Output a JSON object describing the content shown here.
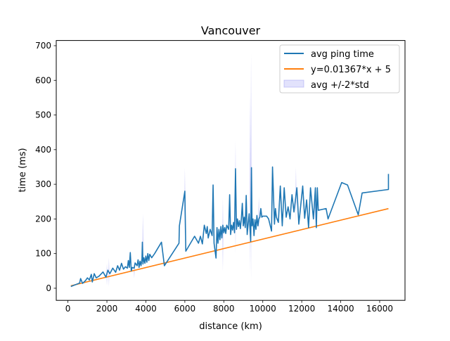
{
  "chart_data": {
    "type": "line",
    "title": "Vancouver",
    "xlabel": "distance (km)",
    "ylabel": "time (ms)",
    "xlim": [
      -600,
      17300
    ],
    "ylim": [
      -35,
      715
    ],
    "xticks": [
      0,
      2000,
      4000,
      6000,
      8000,
      10000,
      12000,
      14000,
      16000
    ],
    "yticks": [
      0,
      100,
      200,
      300,
      400,
      500,
      600,
      700
    ],
    "grid": false,
    "legend_position": "top-right",
    "series": [
      {
        "name": "avg ping time",
        "color": "#1f77b4",
        "points": [
          [
            150,
            5
          ],
          [
            600,
            15
          ],
          [
            650,
            28
          ],
          [
            750,
            14
          ],
          [
            900,
            22
          ],
          [
            1000,
            30
          ],
          [
            1100,
            24
          ],
          [
            1200,
            40
          ],
          [
            1250,
            18
          ],
          [
            1350,
            42
          ],
          [
            1450,
            30
          ],
          [
            1600,
            35
          ],
          [
            1800,
            47
          ],
          [
            1950,
            32
          ],
          [
            2050,
            52
          ],
          [
            2150,
            42
          ],
          [
            2300,
            58
          ],
          [
            2450,
            46
          ],
          [
            2550,
            65
          ],
          [
            2650,
            52
          ],
          [
            2750,
            72
          ],
          [
            2850,
            55
          ],
          [
            2950,
            62
          ],
          [
            3050,
            58
          ],
          [
            3100,
            80
          ],
          [
            3150,
            60
          ],
          [
            3200,
            103
          ],
          [
            3250,
            50
          ],
          [
            3300,
            60
          ],
          [
            3400,
            58
          ],
          [
            3450,
            73
          ],
          [
            3550,
            65
          ],
          [
            3600,
            82
          ],
          [
            3650,
            60
          ],
          [
            3700,
            78
          ],
          [
            3750,
            65
          ],
          [
            3800,
            85
          ],
          [
            3820,
            133
          ],
          [
            3850,
            70
          ],
          [
            3900,
            88
          ],
          [
            3950,
            72
          ],
          [
            4000,
            93
          ],
          [
            4050,
            75
          ],
          [
            4100,
            100
          ],
          [
            4150,
            80
          ],
          [
            4200,
            98
          ],
          [
            4300,
            88
          ],
          [
            4450,
            100
          ],
          [
            4800,
            133
          ],
          [
            4950,
            65
          ],
          [
            5700,
            130
          ],
          [
            5720,
            180
          ],
          [
            6000,
            280
          ],
          [
            6050,
            107
          ],
          [
            6500,
            150
          ],
          [
            6700,
            130
          ],
          [
            6800,
            150
          ],
          [
            6900,
            128
          ],
          [
            7000,
            182
          ],
          [
            7100,
            158
          ],
          [
            7150,
            178
          ],
          [
            7200,
            145
          ],
          [
            7300,
            170
          ],
          [
            7400,
            152
          ],
          [
            7450,
            298
          ],
          [
            7500,
            130
          ],
          [
            7600,
            87
          ],
          [
            7650,
            175
          ],
          [
            7700,
            130
          ],
          [
            7750,
            170
          ],
          [
            7800,
            140
          ],
          [
            7850,
            178
          ],
          [
            7900,
            145
          ],
          [
            7950,
            182
          ],
          [
            8000,
            160
          ],
          [
            8050,
            175
          ],
          [
            8100,
            158
          ],
          [
            8150,
            182
          ],
          [
            8250,
            170
          ],
          [
            8300,
            270
          ],
          [
            8350,
            155
          ],
          [
            8400,
            182
          ],
          [
            8450,
            168
          ],
          [
            8500,
            190
          ],
          [
            8550,
            160
          ],
          [
            8600,
            345
          ],
          [
            8650,
            170
          ],
          [
            8700,
            200
          ],
          [
            8750,
            178
          ],
          [
            8800,
            195
          ],
          [
            8850,
            172
          ],
          [
            8900,
            200
          ],
          [
            8950,
            245
          ],
          [
            9000,
            180
          ],
          [
            9050,
            205
          ],
          [
            9100,
            175
          ],
          [
            9150,
            268
          ],
          [
            9200,
            155
          ],
          [
            9300,
            215
          ],
          [
            9380,
            135
          ],
          [
            9420,
            348
          ],
          [
            9450,
            180
          ],
          [
            9500,
            200
          ],
          [
            9550,
            152
          ],
          [
            9600,
            198
          ],
          [
            9650,
            170
          ],
          [
            9700,
            210
          ],
          [
            9750,
            180
          ],
          [
            9800,
            200
          ],
          [
            9850,
            205
          ],
          [
            9900,
            230
          ],
          [
            9950,
            205
          ],
          [
            10000,
            208
          ],
          [
            10200,
            208
          ],
          [
            10300,
            200
          ],
          [
            10450,
            165
          ],
          [
            10500,
            350
          ],
          [
            10600,
            185
          ],
          [
            10650,
            230
          ],
          [
            10700,
            205
          ],
          [
            10800,
            190
          ],
          [
            10900,
            295
          ],
          [
            11000,
            180
          ],
          [
            11100,
            290
          ],
          [
            11200,
            205
          ],
          [
            11300,
            235
          ],
          [
            11400,
            200
          ],
          [
            11500,
            270
          ],
          [
            11600,
            220
          ],
          [
            11750,
            290
          ],
          [
            11850,
            185
          ],
          [
            11950,
            240
          ],
          [
            12050,
            295
          ],
          [
            12150,
            202
          ],
          [
            12250,
            255
          ],
          [
            12350,
            175
          ],
          [
            12450,
            290
          ],
          [
            12600,
            200
          ],
          [
            12700,
            290
          ],
          [
            12750,
            175
          ],
          [
            12800,
            290
          ],
          [
            12850,
            225
          ],
          [
            13250,
            230
          ],
          [
            13350,
            200
          ],
          [
            14050,
            305
          ],
          [
            14350,
            298
          ],
          [
            14900,
            212
          ],
          [
            15100,
            275
          ],
          [
            16450,
            285
          ],
          [
            16450,
            330
          ]
        ]
      },
      {
        "name": "y=0.01367*x + 5",
        "color": "#ff7f0e",
        "slope": 0.01367,
        "intercept": 5,
        "x_range": [
          150,
          16450
        ]
      },
      {
        "name": "avg +/-2*std",
        "color": "#7b7bf0",
        "type": "area",
        "spikes": [
          [
            2000,
            8,
            72
          ],
          [
            2100,
            5,
            88
          ],
          [
            3400,
            28,
            80
          ],
          [
            3850,
            60,
            215
          ],
          [
            6000,
            150,
            348
          ],
          [
            7950,
            48,
            260
          ],
          [
            8600,
            100,
            425
          ],
          [
            9400,
            20,
            680
          ],
          [
            9350,
            40,
            560
          ],
          [
            9800,
            160,
            265
          ],
          [
            11700,
            190,
            350
          ],
          [
            12700,
            175,
            300
          ]
        ]
      }
    ]
  }
}
